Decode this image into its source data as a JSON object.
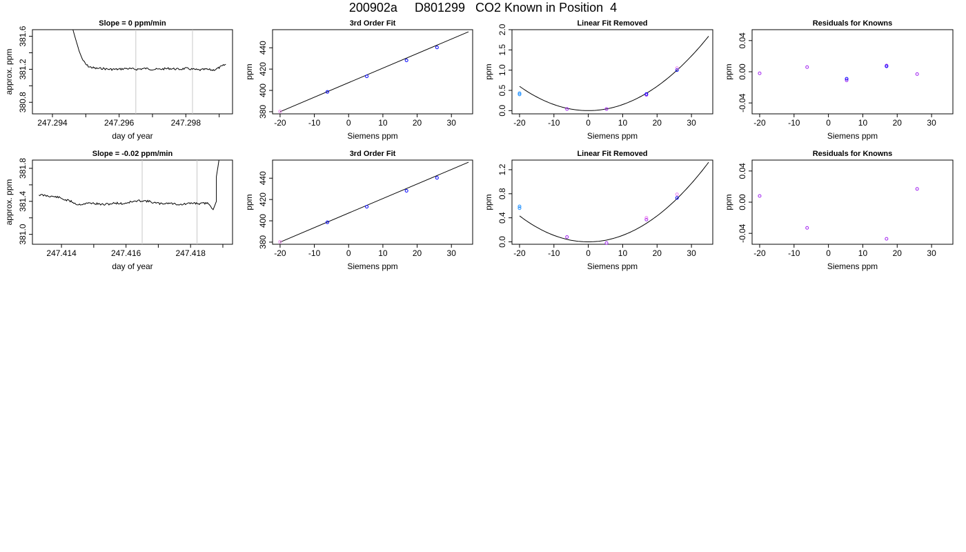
{
  "page": {
    "title": "200902a     D801299   CO2 Known in Position  4"
  },
  "colors": {
    "axis": "#000000",
    "trace": "#000000",
    "marker_line": "#c8c8c8",
    "point_blue": "#0000ff",
    "point_violet": "#a020f0",
    "point_magenta": "#ee82ee",
    "point_cyan": "#1e90ff"
  },
  "chart_data": [
    {
      "type": "line",
      "title": "Slope =  0  ppm/min",
      "xlabel": "day of year",
      "ylabel": "approx. ppm",
      "xlim": [
        247.2934,
        247.2994
      ],
      "ylim": [
        380.66,
        381.68
      ],
      "xticks": [
        247.294,
        247.295,
        247.296,
        247.297,
        247.298,
        247.299
      ],
      "xtick_labels": [
        "247.294",
        "",
        "247.296",
        "",
        "247.298",
        ""
      ],
      "yticks": [
        380.8,
        381.0,
        381.2,
        381.4,
        381.6
      ],
      "ytick_labels": [
        "380.8",
        "",
        "381.2",
        "",
        "381.6"
      ],
      "vlines": [
        247.2965,
        247.2982
      ],
      "series": [
        {
          "x": [
            247.2946,
            247.2947,
            247.2948,
            247.2949,
            247.295,
            247.2951,
            247.2952,
            247.2953,
            247.2955,
            247.2957,
            247.296,
            247.2962,
            247.2965,
            247.2968,
            247.297,
            247.2972,
            247.2975,
            247.2978,
            247.298,
            247.2982,
            247.2984,
            247.2986,
            247.2988,
            247.2989,
            247.299,
            247.2991,
            247.2992
          ],
          "y": [
            381.7,
            381.56,
            381.42,
            381.32,
            381.26,
            381.23,
            381.22,
            381.21,
            381.21,
            381.2,
            381.2,
            381.21,
            381.2,
            381.21,
            381.2,
            381.2,
            381.21,
            381.2,
            381.21,
            381.2,
            381.19,
            381.2,
            381.19,
            381.2,
            381.22,
            381.24,
            381.26
          ]
        }
      ]
    },
    {
      "type": "scatter",
      "title": "3rd Order Fit",
      "xlabel": "Siemens ppm",
      "ylabel": "ppm",
      "xlim": [
        -22.2,
        36.2
      ],
      "ylim": [
        378,
        457
      ],
      "xticks": [
        -20,
        -10,
        0,
        10,
        20,
        30
      ],
      "xtick_labels": [
        "-20",
        "-10",
        "0",
        "10",
        "20",
        "30"
      ],
      "yticks": [
        380,
        400,
        420,
        440
      ],
      "ytick_labels": [
        "380",
        "400",
        "420",
        "440"
      ],
      "fit_line": {
        "x": [
          -20,
          35
        ],
        "y": [
          380,
          455
        ]
      },
      "points": [
        {
          "x": -20,
          "y": 380.3,
          "color": "point_magenta"
        },
        {
          "x": -6.2,
          "y": 398.6,
          "color": "point_blue"
        },
        {
          "x": 5.3,
          "y": 413.2,
          "color": "point_blue"
        },
        {
          "x": 16.9,
          "y": 428.2,
          "color": "point_blue"
        },
        {
          "x": 25.8,
          "y": 440.3,
          "color": "point_blue"
        }
      ]
    },
    {
      "type": "scatter",
      "title": "Linear Fit Removed",
      "xlabel": "Siemens ppm",
      "ylabel": "ppm",
      "xlim": [
        -22.2,
        36.2
      ],
      "ylim": [
        -0.08,
        2.0
      ],
      "xticks": [
        -20,
        -10,
        0,
        10,
        20,
        30
      ],
      "xtick_labels": [
        "-20",
        "-10",
        "0",
        "10",
        "20",
        "30"
      ],
      "yticks": [
        0.0,
        0.5,
        1.0,
        1.5,
        2.0
      ],
      "ytick_labels": [
        "0.0",
        "0.5",
        "1.0",
        "1.5",
        "2.0"
      ],
      "curve": {
        "a": 0.0015,
        "x0": 0,
        "xmin": -20,
        "xmax": 35
      },
      "points": [
        {
          "x": -20,
          "y": 0.4,
          "color": "point_cyan"
        },
        {
          "x": -20,
          "y": 0.43,
          "color": "point_cyan"
        },
        {
          "x": -6.2,
          "y": 0.04,
          "color": "point_violet"
        },
        {
          "x": 5.3,
          "y": 0.04,
          "color": "point_violet"
        },
        {
          "x": 16.9,
          "y": 0.39,
          "color": "point_violet"
        },
        {
          "x": 16.9,
          "y": 0.41,
          "color": "point_blue"
        },
        {
          "x": 25.8,
          "y": 1.0,
          "color": "point_blue"
        },
        {
          "x": 25.8,
          "y": 1.05,
          "color": "point_magenta"
        }
      ]
    },
    {
      "type": "scatter",
      "title": "Residuals for Knowns",
      "xlabel": "Siemens ppm",
      "ylabel": "ppm",
      "xlim": [
        -22.2,
        36.2
      ],
      "ylim": [
        -0.054,
        0.054
      ],
      "xticks": [
        -20,
        -10,
        0,
        10,
        20,
        30
      ],
      "xtick_labels": [
        "-20",
        "-10",
        "0",
        "10",
        "20",
        "30"
      ],
      "yticks": [
        -0.04,
        0.0,
        0.04
      ],
      "ytick_labels": [
        "-0.04",
        "0.00",
        "0.04"
      ],
      "points": [
        {
          "x": -20,
          "y": -0.002,
          "color": "point_violet"
        },
        {
          "x": -6.2,
          "y": 0.006,
          "color": "point_violet"
        },
        {
          "x": 5.3,
          "y": -0.011,
          "color": "point_violet"
        },
        {
          "x": 5.3,
          "y": -0.009,
          "color": "point_blue"
        },
        {
          "x": 16.9,
          "y": 0.008,
          "color": "point_violet"
        },
        {
          "x": 16.9,
          "y": 0.007,
          "color": "point_blue"
        },
        {
          "x": 25.8,
          "y": -0.003,
          "color": "point_violet"
        }
      ]
    },
    {
      "type": "line",
      "title": "Slope =  -0.02  ppm/min",
      "xlabel": "day of year",
      "ylabel": "approx. ppm",
      "xlim": [
        247.4131,
        247.4193
      ],
      "ylim": [
        380.88,
        381.9
      ],
      "xticks": [
        247.414,
        247.415,
        247.416,
        247.417,
        247.418,
        247.419
      ],
      "xtick_labels": [
        "247.414",
        "",
        "247.416",
        "",
        "247.418",
        ""
      ],
      "yticks": [
        381.0,
        381.2,
        381.4,
        381.6,
        381.8
      ],
      "ytick_labels": [
        "381.0",
        "",
        "381.4",
        "",
        "381.8"
      ],
      "vlines": [
        247.4165,
        247.4182
      ],
      "series": [
        {
          "x": [
            247.4133,
            247.4135,
            247.4137,
            247.4139,
            247.4141,
            247.4143,
            247.4145,
            247.4147,
            247.4149,
            247.4151,
            247.4153,
            247.4155,
            247.4157,
            247.4159,
            247.4161,
            247.4163,
            247.4165,
            247.4167,
            247.4169,
            247.4171,
            247.4173,
            247.4175,
            247.4177,
            247.4179,
            247.4181,
            247.4183,
            247.4185,
            247.4186,
            247.4187,
            247.4188,
            247.4188,
            247.4189
          ],
          "y": [
            381.48,
            381.47,
            381.46,
            381.45,
            381.42,
            381.4,
            381.36,
            381.37,
            381.38,
            381.37,
            381.36,
            381.37,
            381.38,
            381.37,
            381.39,
            381.4,
            381.41,
            381.4,
            381.38,
            381.37,
            381.38,
            381.37,
            381.36,
            381.37,
            381.38,
            381.37,
            381.38,
            381.36,
            381.3,
            381.4,
            381.7,
            381.95
          ]
        }
      ]
    },
    {
      "type": "scatter",
      "title": "3rd Order Fit",
      "xlabel": "Siemens ppm",
      "ylabel": "ppm",
      "xlim": [
        -22.2,
        36.2
      ],
      "ylim": [
        378,
        457
      ],
      "xticks": [
        -20,
        -10,
        0,
        10,
        20,
        30
      ],
      "xtick_labels": [
        "-20",
        "-10",
        "0",
        "10",
        "20",
        "30"
      ],
      "yticks": [
        380,
        400,
        420,
        440
      ],
      "ytick_labels": [
        "380",
        "400",
        "420",
        "440"
      ],
      "fit_line": {
        "x": [
          -20,
          35
        ],
        "y": [
          380,
          455
        ]
      },
      "points": [
        {
          "x": -20,
          "y": 380.3,
          "color": "point_magenta"
        },
        {
          "x": -6.2,
          "y": 398.6,
          "color": "point_blue"
        },
        {
          "x": 5.3,
          "y": 413.2,
          "color": "point_blue"
        },
        {
          "x": 16.9,
          "y": 428.2,
          "color": "point_blue"
        },
        {
          "x": 25.8,
          "y": 440.3,
          "color": "point_blue"
        }
      ]
    },
    {
      "type": "scatter",
      "title": "Linear Fit Removed",
      "xlabel": "Siemens ppm",
      "ylabel": "ppm",
      "xlim": [
        -22.2,
        36.2
      ],
      "ylim": [
        -0.04,
        1.36
      ],
      "xticks": [
        -20,
        -10,
        0,
        10,
        20,
        30
      ],
      "xtick_labels": [
        "-20",
        "-10",
        "0",
        "10",
        "20",
        "30"
      ],
      "yticks": [
        0.0,
        0.4,
        0.8,
        1.2
      ],
      "ytick_labels": [
        "0.0",
        "0.4",
        "0.8",
        "1.2"
      ],
      "curve": {
        "a": 0.00108,
        "x0": 0,
        "xmin": -20,
        "xmax": 35
      },
      "points": [
        {
          "x": -20,
          "y": 0.56,
          "color": "point_cyan"
        },
        {
          "x": -20,
          "y": 0.59,
          "color": "point_cyan"
        },
        {
          "x": -6.2,
          "y": 0.08,
          "color": "point_violet"
        },
        {
          "x": 5.3,
          "y": -0.02,
          "color": "point_violet"
        },
        {
          "x": 16.9,
          "y": 0.37,
          "color": "point_violet"
        },
        {
          "x": 16.9,
          "y": 0.4,
          "color": "point_magenta"
        },
        {
          "x": 25.8,
          "y": 0.73,
          "color": "point_blue"
        },
        {
          "x": 25.8,
          "y": 0.79,
          "color": "point_magenta"
        }
      ]
    },
    {
      "type": "scatter",
      "title": "Residuals for Knowns",
      "xlabel": "Siemens ppm",
      "ylabel": "ppm",
      "xlim": [
        -22.2,
        36.2
      ],
      "ylim": [
        -0.054,
        0.054
      ],
      "xticks": [
        -20,
        -10,
        0,
        10,
        20,
        30
      ],
      "xtick_labels": [
        "-20",
        "-10",
        "0",
        "10",
        "20",
        "30"
      ],
      "yticks": [
        -0.04,
        0.0,
        0.04
      ],
      "ytick_labels": [
        "-0.04",
        "0.00",
        "0.04"
      ],
      "points": [
        {
          "x": -20,
          "y": 0.008,
          "color": "point_violet"
        },
        {
          "x": -6.2,
          "y": -0.033,
          "color": "point_violet"
        },
        {
          "x": 16.9,
          "y": -0.047,
          "color": "point_violet"
        },
        {
          "x": 25.8,
          "y": 0.017,
          "color": "point_violet"
        }
      ]
    }
  ]
}
